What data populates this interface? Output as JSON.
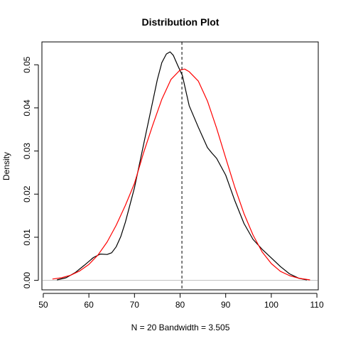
{
  "chart_data": {
    "type": "line",
    "title": "Distribution Plot",
    "xlabel": "N = 20   Bandwidth = 3.505",
    "ylabel": "Density",
    "xlim": [
      49.7,
      110.3
    ],
    "ylim": [
      -0.0022,
      0.0553
    ],
    "x_ticks": [
      50,
      60,
      70,
      80,
      90,
      100,
      110
    ],
    "x_tick_labels": [
      "50",
      "60",
      "70",
      "80",
      "90",
      "100",
      "110"
    ],
    "y_ticks": [
      0.0,
      0.01,
      0.02,
      0.03,
      0.04,
      0.05
    ],
    "y_tick_labels": [
      "0.00",
      "0.01",
      "0.02",
      "0.03",
      "0.04",
      "0.05"
    ],
    "grid": false,
    "baseline": {
      "y": 0,
      "color": "#bebebe"
    },
    "vline": {
      "x": 80.4,
      "style": "dashed",
      "color": "#000000"
    },
    "series": [
      {
        "color": "#000000",
        "x": [
          53.0,
          55.0,
          57.0,
          59.0,
          61.0,
          62.5,
          64.0,
          65.0,
          66.0,
          67.0,
          68.0,
          70.0,
          72.0,
          74.0,
          75.0,
          76.0,
          77.0,
          77.8,
          78.5,
          79.5,
          80.5,
          82.0,
          84.0,
          86.0,
          87.0,
          88.0,
          90.0,
          92.0,
          94.0,
          96.0,
          98.0,
          100.0,
          102.0,
          104.0,
          106.0,
          107.8
        ],
        "y": [
          0.0001,
          0.0006,
          0.0018,
          0.0035,
          0.0053,
          0.0061,
          0.006,
          0.0064,
          0.0078,
          0.0102,
          0.0135,
          0.0215,
          0.0315,
          0.0415,
          0.0465,
          0.0505,
          0.0525,
          0.053,
          0.0522,
          0.0498,
          0.0475,
          0.0405,
          0.0355,
          0.0308,
          0.0295,
          0.0283,
          0.0244,
          0.0185,
          0.0132,
          0.0095,
          0.0072,
          0.0052,
          0.0032,
          0.0015,
          0.0005,
          0.0001
        ]
      },
      {
        "color": "#ff0000",
        "x": [
          52.0,
          54.0,
          56.0,
          58.0,
          60.0,
          62.0,
          64.0,
          66.0,
          68.0,
          70.0,
          72.0,
          74.0,
          76.0,
          78.0,
          80.0,
          81.0,
          82.0,
          84.0,
          86.0,
          88.0,
          90.0,
          92.0,
          94.0,
          96.0,
          98.0,
          100.0,
          102.0,
          104.0,
          106.0,
          108.5
        ],
        "y": [
          0.0003,
          0.0006,
          0.0012,
          0.0022,
          0.0037,
          0.0059,
          0.0089,
          0.0128,
          0.0174,
          0.0225,
          0.0296,
          0.036,
          0.042,
          0.0466,
          0.0488,
          0.049,
          0.0484,
          0.0462,
          0.0416,
          0.0353,
          0.0284,
          0.0216,
          0.0155,
          0.0105,
          0.0066,
          0.0039,
          0.0021,
          0.0011,
          0.0005,
          0.0001
        ]
      }
    ]
  }
}
